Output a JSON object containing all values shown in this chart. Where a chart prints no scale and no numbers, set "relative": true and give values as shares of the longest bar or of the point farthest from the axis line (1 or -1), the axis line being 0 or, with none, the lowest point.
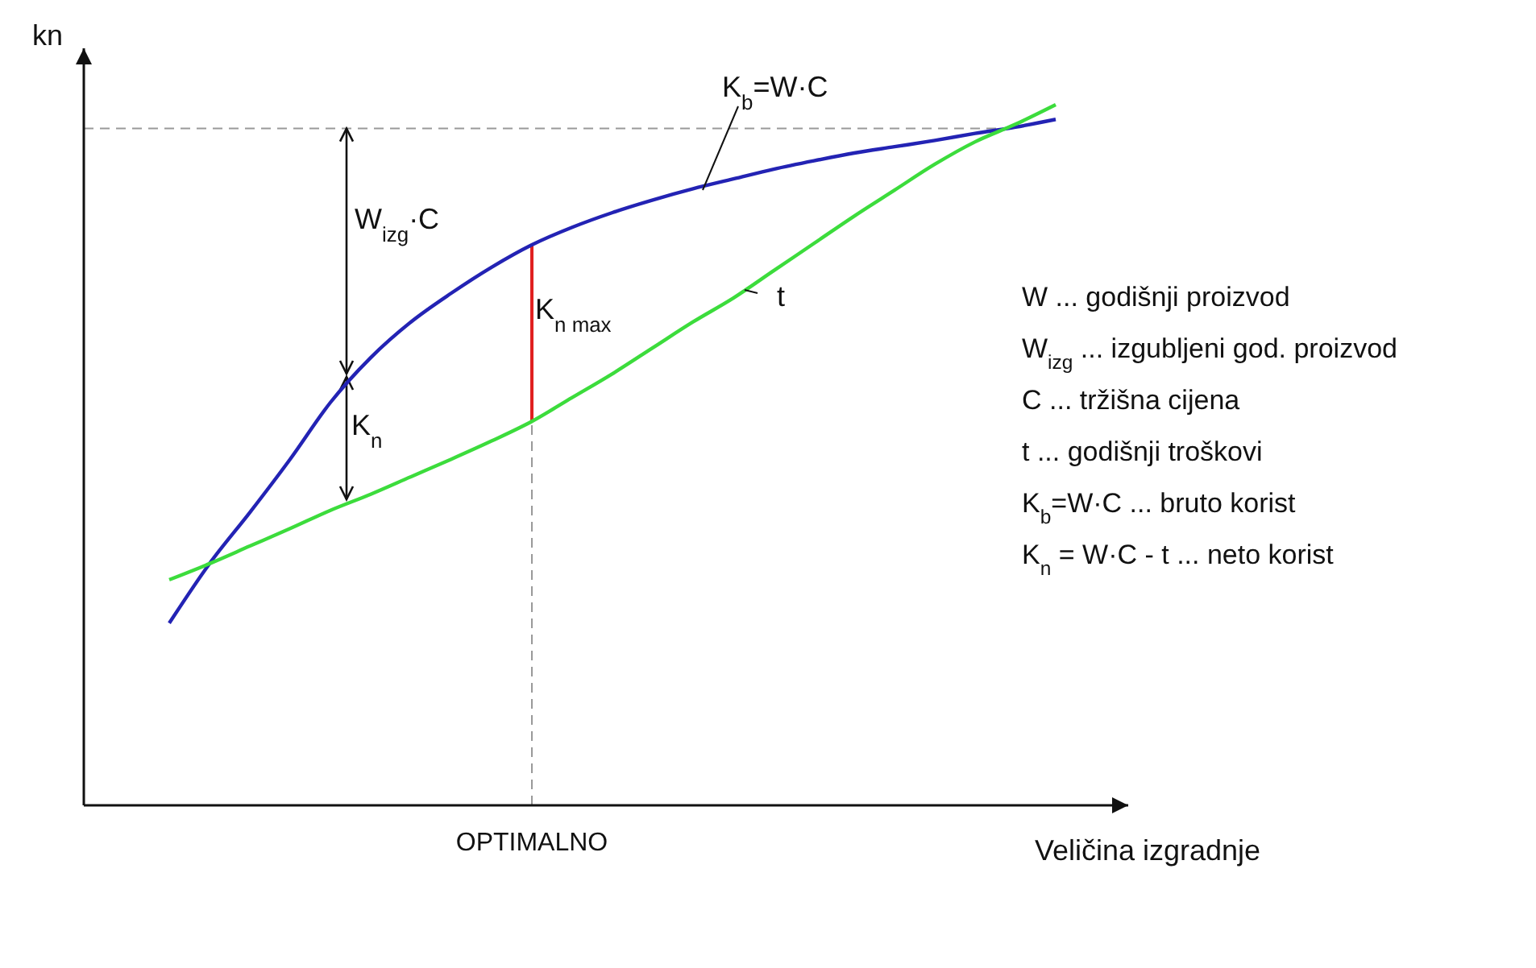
{
  "chart_data": {
    "type": "line",
    "relative": true,
    "xlabel": "Veličina izgradnje",
    "ylabel": "kn",
    "categories": [
      null,
      null,
      null,
      null,
      null,
      null,
      null,
      null,
      null,
      null,
      null,
      null,
      null,
      null,
      null,
      null,
      null,
      null,
      null,
      null,
      null,
      null,
      null
    ],
    "series": [
      {
        "name": "K$_{b}$=W·C",
        "color": "#2323b4",
        "values": [
          0.26,
          0.345,
          0.418,
          0.494,
          0.575,
          0.639,
          0.69,
          0.731,
          0.768,
          0.8,
          0.825,
          0.846,
          0.864,
          0.88,
          0.894,
          0.908,
          0.92,
          0.931,
          0.94,
          0.949,
          0.959,
          0.968,
          0.979
        ]
      },
      {
        "name": "t",
        "color": "#3cdc3c",
        "values": [
          0.322,
          0.345,
          0.37,
          0.395,
          0.421,
          0.444,
          0.469,
          0.494,
          0.52,
          0.548,
          0.582,
          0.616,
          0.653,
          0.69,
          0.724,
          0.763,
          0.802,
          0.841,
          0.878,
          0.915,
          0.947,
          0.972,
          1.0
        ]
      }
    ],
    "ref_lines": [
      {
        "axis": "y",
        "value": 0.966,
        "color": "#999999",
        "line_style": "dashed"
      }
    ],
    "annotations": [
      "OPTIMALNO",
      "K$_{n max}$",
      "W$_{izg}$·C",
      "K$_{n}$",
      "W ... godišnji proizvod",
      "W$_{izg}$ ... izgubljeni god. proizvod",
      "C ... tržišna cijena",
      "t ... godišnji troškovi",
      "K$_{b}$=W·C ... bruto korist",
      "K$_{n}$ = W·C - t ... neto korist"
    ],
    "marker": "none",
    "line_style": "solid"
  }
}
